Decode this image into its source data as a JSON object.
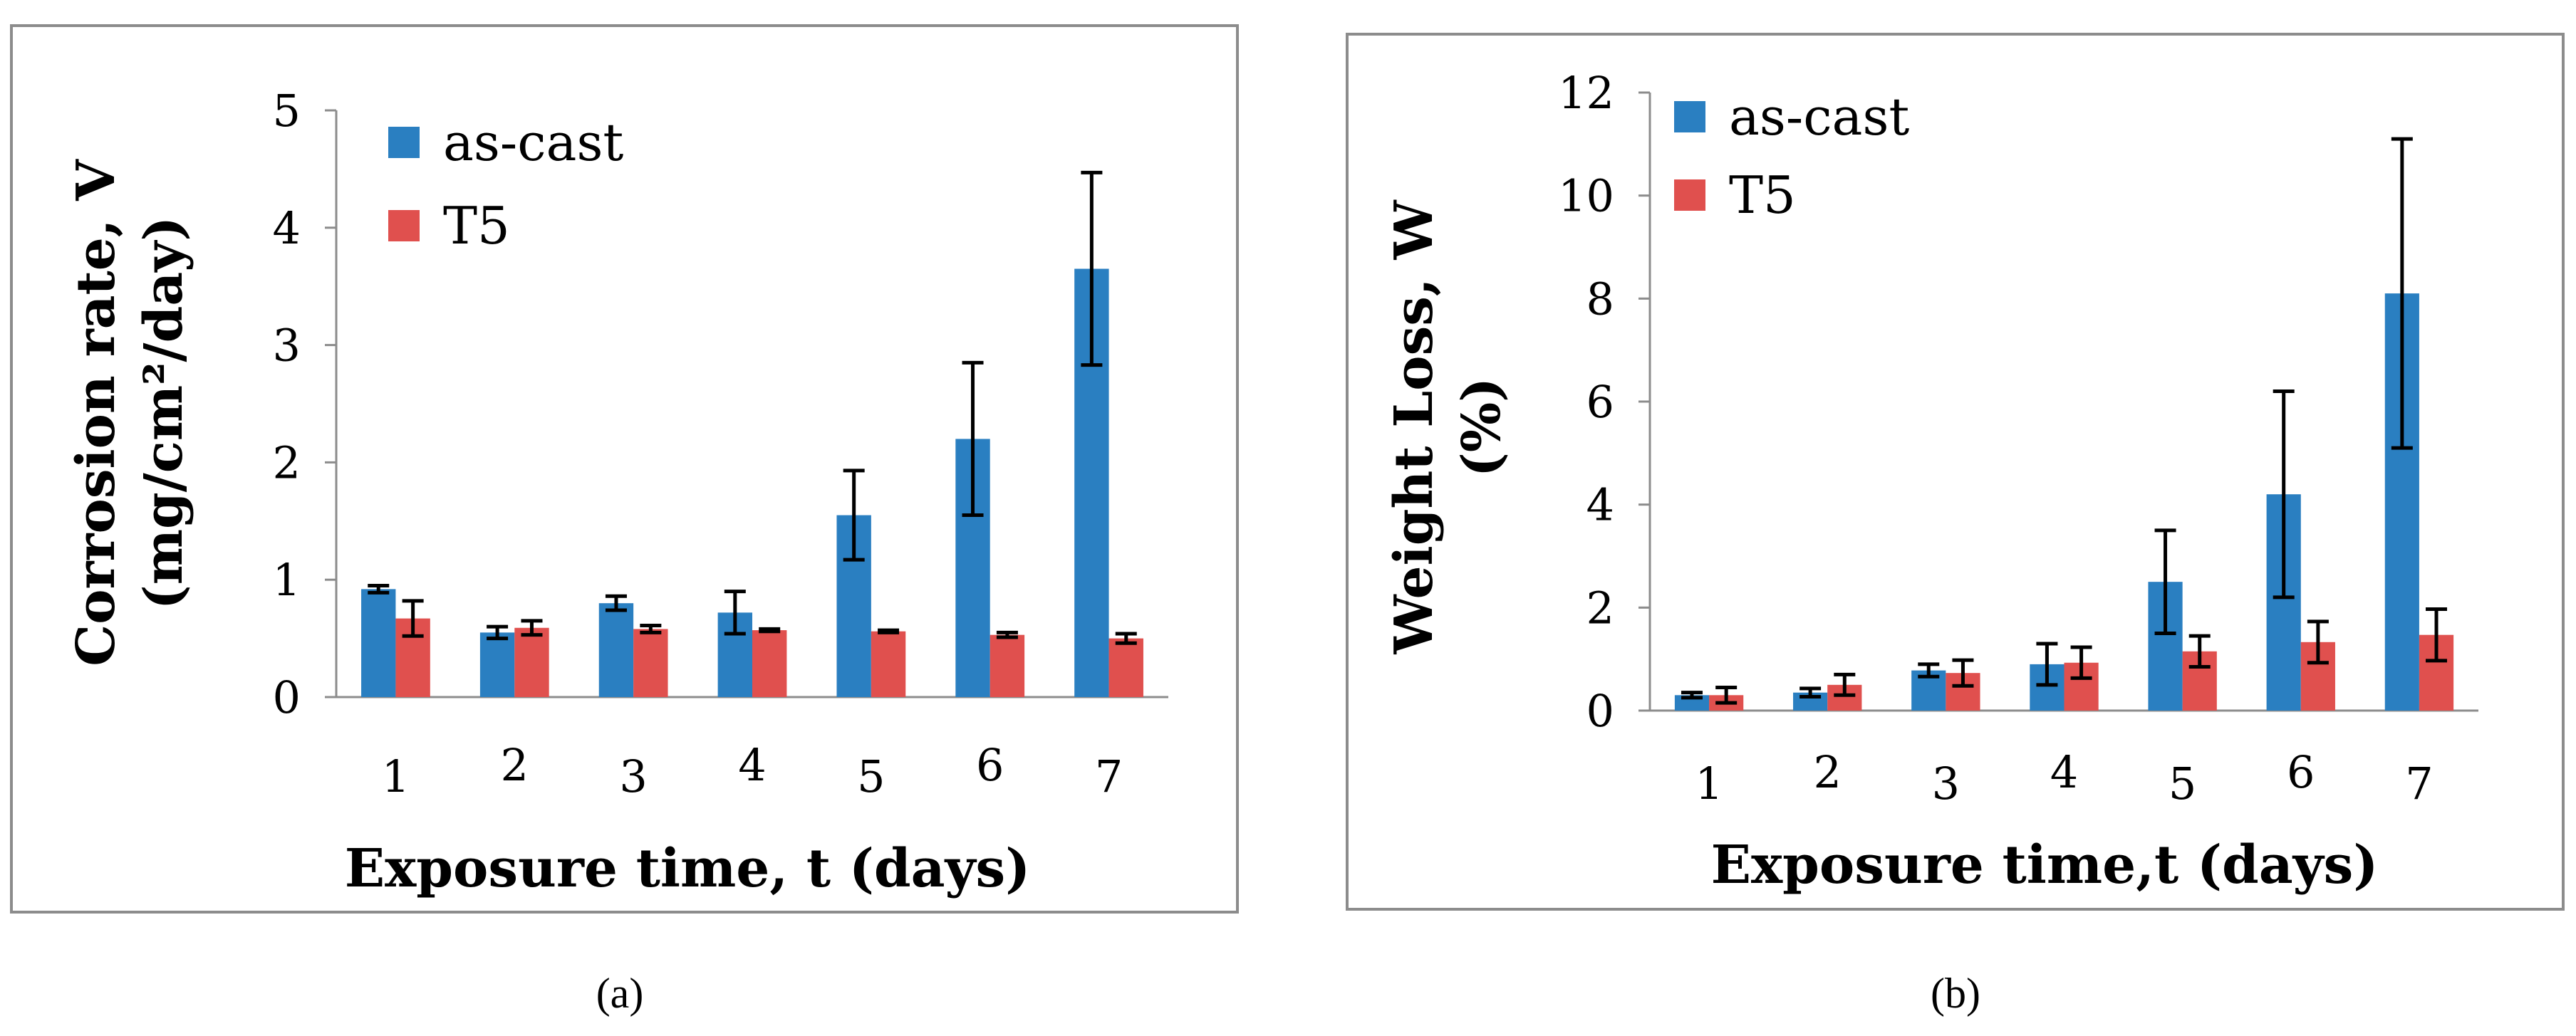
{
  "colors": {
    "as_cast": "#2a7fc1",
    "t5": "#e0504e",
    "frame": "#8c8c8c"
  },
  "captions": {
    "a": "(a)",
    "b": "(b)"
  },
  "chart_data": [
    {
      "id": "a",
      "type": "bar",
      "title": "",
      "xlabel": "Exposure time, t (days)",
      "ylabel_line1": "Corrosion rate, V",
      "ylabel_line2": "(mg/cm²/day)",
      "categories": [
        "1",
        "2",
        "3",
        "4",
        "5",
        "6",
        "7"
      ],
      "ylim": [
        0,
        5
      ],
      "yticks": [
        "0",
        "1",
        "2",
        "3",
        "4",
        "5"
      ],
      "grid": false,
      "legend_position": "top-left",
      "series": [
        {
          "name": "as-cast",
          "color_key": "as_cast",
          "values": [
            0.92,
            0.55,
            0.8,
            0.72,
            1.55,
            2.2,
            3.65
          ],
          "errors": [
            0.03,
            0.05,
            0.06,
            0.18,
            0.38,
            0.65,
            0.82
          ]
        },
        {
          "name": "T5",
          "color_key": "t5",
          "values": [
            0.67,
            0.59,
            0.58,
            0.57,
            0.56,
            0.53,
            0.5
          ],
          "errors": [
            0.15,
            0.06,
            0.03,
            0.01,
            0.01,
            0.02,
            0.04
          ]
        }
      ]
    },
    {
      "id": "b",
      "type": "bar",
      "title": "",
      "xlabel": "Exposure time,t (days)",
      "ylabel_line1": "Weight Loss, W",
      "ylabel_line2": "(%)",
      "categories": [
        "1",
        "2",
        "3",
        "4",
        "5",
        "6",
        "7"
      ],
      "ylim": [
        0,
        12
      ],
      "yticks": [
        "0",
        "2",
        "4",
        "6",
        "8",
        "10",
        "12"
      ],
      "grid": false,
      "legend_position": "top-left",
      "series": [
        {
          "name": "as-cast",
          "color_key": "as_cast",
          "values": [
            0.3,
            0.35,
            0.78,
            0.9,
            2.5,
            4.2,
            8.1
          ],
          "errors": [
            0.05,
            0.08,
            0.12,
            0.4,
            1.0,
            2.0,
            3.0
          ]
        },
        {
          "name": "T5",
          "color_key": "t5",
          "values": [
            0.3,
            0.5,
            0.73,
            0.93,
            1.15,
            1.33,
            1.47
          ],
          "errors": [
            0.15,
            0.2,
            0.25,
            0.3,
            0.3,
            0.4,
            0.5
          ]
        }
      ]
    }
  ]
}
